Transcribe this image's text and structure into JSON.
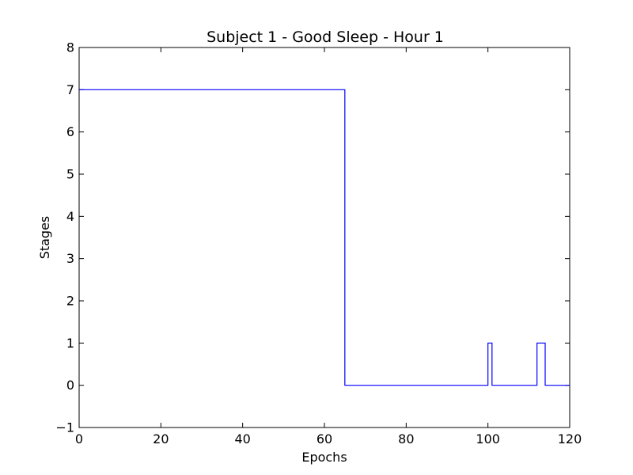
{
  "chart_data": {
    "type": "line",
    "step": true,
    "title": "Subject 1 - Good Sleep - Hour 1",
    "xlabel": "Epochs",
    "ylabel": "Stages",
    "xlim": [
      0,
      120
    ],
    "ylim": [
      -1,
      8
    ],
    "xticks": [
      "0",
      "20",
      "40",
      "60",
      "80",
      "100",
      "120"
    ],
    "yticks": [
      "−1",
      "0",
      "1",
      "2",
      "3",
      "4",
      "5",
      "6",
      "7",
      "8"
    ],
    "grid": false,
    "series": [
      {
        "color": "#0000ff",
        "x": [
          0,
          65,
          100,
          101,
          112,
          114,
          120
        ],
        "y": [
          7,
          0,
          1,
          0,
          1,
          0,
          0
        ]
      }
    ]
  }
}
